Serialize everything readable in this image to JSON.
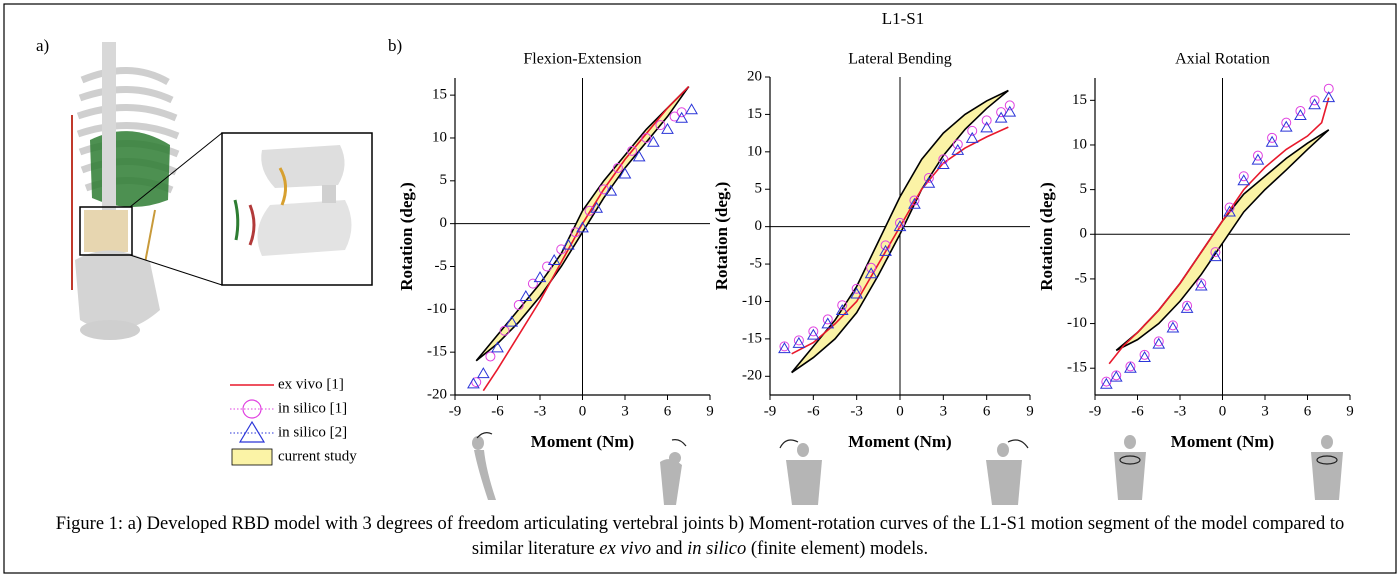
{
  "figure": {
    "panel_a": "a)",
    "panel_b": "b)",
    "title": "L1-S1"
  },
  "caption": {
    "text_1": "Figure 1: a) Developed RBD model with 3 degrees of freedom articulating vertebral joints b) Moment-rotation curves of the L1-S1 motion segment of the model compared to similar literature ",
    "italic_1": "ex vivo",
    "text_2": " and ",
    "italic_2": "in silico",
    "text_3": " (finite element) models."
  },
  "chart_data": [
    {
      "type": "line",
      "title": "Flexion-Extension",
      "x_label": "Moment (Nm)",
      "y_label": "Rotation (deg.)",
      "xlim": [
        -9,
        9
      ],
      "xticks": [
        -9,
        -6,
        -3,
        0,
        3,
        6,
        9
      ],
      "ylim": [
        -20,
        17
      ],
      "yticks": [
        -20,
        -15,
        -10,
        -5,
        0,
        5,
        10,
        15
      ],
      "series": [
        {
          "name": "ex vivo [1]",
          "color": "#e8192c",
          "marker": "none",
          "x": [
            -7,
            -6,
            -4.5,
            -3,
            -1.5,
            0,
            1.5,
            3,
            4.5,
            6,
            7.5
          ],
          "values": [
            -19.5,
            -17,
            -13,
            -9,
            -4.5,
            0,
            4,
            7.5,
            10.5,
            13.5,
            16
          ]
        },
        {
          "name": "in silico [1]",
          "color": "#e040e0",
          "marker": "circle",
          "x": [
            -7.5,
            -6.5,
            -5.5,
            -4.5,
            -3.5,
            -2.5,
            -1.5,
            -0.5,
            0.5,
            1.5,
            2.5,
            3.5,
            4.5,
            5.5,
            6.5,
            7
          ],
          "values": [
            -18.5,
            -15.5,
            -12.5,
            -9.5,
            -7,
            -5,
            -3,
            -1,
            1.5,
            4,
            6.5,
            8.5,
            10,
            11.5,
            12.5,
            13
          ]
        },
        {
          "name": "in silico [2]",
          "color": "#2a35d8",
          "marker": "triangle",
          "x": [
            -7.7,
            -7,
            -6,
            -5,
            -4,
            -3,
            -2,
            -1,
            0,
            1,
            2,
            3,
            4,
            5,
            6,
            7,
            7.7
          ],
          "values": [
            -18.7,
            -17.5,
            -14.5,
            -11.5,
            -8.5,
            -6.3,
            -4.3,
            -2.5,
            -0.5,
            1.8,
            3.8,
            5.8,
            7.8,
            9.5,
            11,
            12.3,
            13.3
          ]
        },
        {
          "name": "current study",
          "color": "#fbf3a6",
          "edge_color": "#000000",
          "marker": "band",
          "x": [
            -7.5,
            -6,
            -4.5,
            -3,
            -1.5,
            0,
            1.5,
            3,
            4.5,
            6,
            7.5
          ],
          "upper": [
            -16,
            -13,
            -10,
            -7,
            -3.5,
            1.5,
            5,
            8,
            11,
            13.5,
            16
          ],
          "lower": [
            -16,
            -14,
            -11.5,
            -8.5,
            -5,
            -1,
            3,
            6.5,
            9.5,
            12.5,
            16
          ]
        }
      ]
    },
    {
      "type": "line",
      "title": "Lateral Bending",
      "x_label": "Moment (Nm)",
      "y_label": "Rotation (deg.)",
      "xlim": [
        -9,
        9
      ],
      "xticks": [
        -9,
        -6,
        -3,
        0,
        3,
        6,
        9
      ],
      "ylim": [
        -22.5,
        20
      ],
      "yticks": [
        -20,
        -15,
        -10,
        -5,
        0,
        5,
        10,
        15,
        20
      ],
      "series": [
        {
          "name": "ex vivo [1]",
          "color": "#e8192c",
          "marker": "none",
          "x": [
            -7.5,
            -6,
            -4.5,
            -3,
            -1.5,
            0,
            1.5,
            3,
            4.5,
            6,
            7.5
          ],
          "values": [
            -17,
            -15.5,
            -13,
            -10,
            -5,
            0,
            5,
            8.5,
            10.5,
            12,
            13.3
          ]
        },
        {
          "name": "in silico [1]",
          "color": "#e040e0",
          "marker": "circle",
          "x": [
            -8,
            -7,
            -6,
            -5,
            -4,
            -3,
            -2,
            -1,
            0,
            1,
            2,
            3,
            4,
            5,
            6,
            7,
            7.6
          ],
          "values": [
            -16,
            -15.2,
            -14,
            -12.4,
            -10.5,
            -8.3,
            -5.5,
            -2.5,
            0.5,
            3.5,
            6.5,
            9,
            11,
            12.8,
            14.2,
            15.3,
            16.2
          ]
        },
        {
          "name": "in silico [2]",
          "color": "#2a35d8",
          "marker": "triangle",
          "x": [
            -8,
            -7,
            -6,
            -5,
            -4,
            -3,
            -2,
            -1,
            0,
            1,
            2,
            3,
            4,
            5,
            6,
            7,
            7.6
          ],
          "values": [
            -16.3,
            -15.6,
            -14.5,
            -13,
            -11.2,
            -9,
            -6.3,
            -3.3,
            0,
            3,
            5.8,
            8.3,
            10.2,
            11.8,
            13.2,
            14.5,
            15.3
          ]
        },
        {
          "name": "current study",
          "color": "#fbf3a6",
          "edge_color": "#000000",
          "marker": "band",
          "x": [
            -7.5,
            -6,
            -4.5,
            -3,
            -1.5,
            0,
            1.5,
            3,
            4.5,
            6,
            7.5
          ],
          "upper": [
            -19.5,
            -16,
            -12.5,
            -8,
            -2,
            4,
            9,
            12.5,
            15,
            16.8,
            18.2
          ],
          "lower": [
            -19.5,
            -17.5,
            -15,
            -11.5,
            -6.5,
            -1,
            5,
            9.5,
            13,
            15.8,
            18.2
          ]
        }
      ]
    },
    {
      "type": "line",
      "title": "Axial Rotation",
      "x_label": "Moment (Nm)",
      "y_label": "Rotation (deg.)",
      "xlim": [
        -9,
        9
      ],
      "xticks": [
        -9,
        -6,
        -3,
        0,
        3,
        6,
        9
      ],
      "ylim": [
        -18,
        17.5
      ],
      "yticks": [
        -15,
        -10,
        -5,
        0,
        5,
        10,
        15
      ],
      "series": [
        {
          "name": "ex vivo [1]",
          "color": "#e8192c",
          "marker": "none",
          "x": [
            -8,
            -7,
            -6,
            -4.5,
            -3,
            -1.5,
            0,
            1.5,
            3,
            4.5,
            6,
            7,
            7.5
          ],
          "values": [
            -14.5,
            -12.5,
            -11,
            -8.5,
            -5.5,
            -2,
            1.5,
            5,
            7.5,
            9.5,
            11,
            12.5,
            15.3
          ]
        },
        {
          "name": "in silico [1]",
          "color": "#e040e0",
          "marker": "circle",
          "x": [
            -8.2,
            -7.5,
            -6.5,
            -5.5,
            -4.5,
            -3.5,
            -2.5,
            -1.5,
            -0.5,
            0.5,
            1.5,
            2.5,
            3.5,
            4.5,
            5.5,
            6.5,
            7.5
          ],
          "values": [
            -16.5,
            -15.8,
            -14.8,
            -13.5,
            -12,
            -10.2,
            -8,
            -5.5,
            -2,
            3,
            6.5,
            8.8,
            10.8,
            12.5,
            13.8,
            15,
            16.3
          ]
        },
        {
          "name": "in silico [2]",
          "color": "#2a35d8",
          "marker": "triangle",
          "x": [
            -8.2,
            -7.5,
            -6.5,
            -5.5,
            -4.5,
            -3.5,
            -2.5,
            -1.5,
            -0.5,
            0.5,
            1.5,
            2.5,
            3.5,
            4.5,
            5.5,
            6.5,
            7.5
          ],
          "values": [
            -16.8,
            -16,
            -15,
            -13.8,
            -12.3,
            -10.5,
            -8.3,
            -5.8,
            -2.5,
            2.5,
            6,
            8.3,
            10.3,
            12,
            13.3,
            14.5,
            15.3
          ]
        },
        {
          "name": "current study",
          "color": "#fbf3a6",
          "edge_color": "#000000",
          "marker": "band",
          "x": [
            -7.5,
            -6,
            -4.5,
            -3,
            -1.5,
            0,
            1.5,
            3,
            4.5,
            6,
            7.5
          ],
          "upper": [
            -13,
            -11,
            -8.5,
            -5.5,
            -2,
            1.5,
            4.5,
            6.5,
            8.5,
            10.2,
            11.7
          ],
          "lower": [
            -13,
            -11.8,
            -10,
            -7.5,
            -4.5,
            -1,
            2.5,
            5,
            7.2,
            9.5,
            11.7
          ]
        }
      ]
    }
  ]
}
